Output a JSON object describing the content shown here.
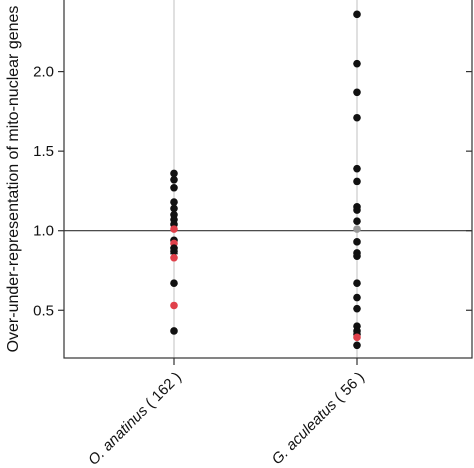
{
  "chart_data": {
    "type": "scatter",
    "ylabel": "Over-under-representation of mito-nuclear genes",
    "ylim": [
      0.2,
      2.45
    ],
    "yticks": [
      "0.5",
      "1.0",
      "1.5",
      "2.0"
    ],
    "reference_line": 1.0,
    "grid": "vertical lines at categories",
    "categories": [
      "O. anatinus ( 162 )",
      "G. aculeatus ( 56 )"
    ],
    "category_labels": [
      {
        "species": "O. anatinus",
        "count": " ( 162 )"
      },
      {
        "species": "G. aculeatus",
        "count": " ( 56 )"
      }
    ],
    "colors": {
      "default": "#111111",
      "highlight": "#e0404a",
      "neutral": "#999999",
      "axis": "#333333",
      "gridline": "#cccccc"
    },
    "series": [
      {
        "category": "O. anatinus ( 162 )",
        "points": [
          {
            "y": 1.36,
            "color": "default"
          },
          {
            "y": 1.32,
            "color": "default"
          },
          {
            "y": 1.27,
            "color": "default"
          },
          {
            "y": 1.18,
            "color": "default"
          },
          {
            "y": 1.14,
            "color": "default"
          },
          {
            "y": 1.1,
            "color": "default"
          },
          {
            "y": 1.07,
            "color": "default"
          },
          {
            "y": 1.04,
            "color": "default"
          },
          {
            "y": 1.01,
            "color": "highlight"
          },
          {
            "y": 0.94,
            "color": "default"
          },
          {
            "y": 0.92,
            "color": "highlight"
          },
          {
            "y": 0.89,
            "color": "default"
          },
          {
            "y": 0.87,
            "color": "default"
          },
          {
            "y": 0.83,
            "color": "highlight"
          },
          {
            "y": 0.67,
            "color": "default"
          },
          {
            "y": 0.53,
            "color": "highlight"
          },
          {
            "y": 0.37,
            "color": "default"
          }
        ],
        "marker": {
          "y": 0.88,
          "symbol": "×"
        }
      },
      {
        "category": "G. aculeatus ( 56 )",
        "points": [
          {
            "y": 2.36,
            "color": "default"
          },
          {
            "y": 2.05,
            "color": "default"
          },
          {
            "y": 1.87,
            "color": "default"
          },
          {
            "y": 1.71,
            "color": "default"
          },
          {
            "y": 1.39,
            "color": "default"
          },
          {
            "y": 1.31,
            "color": "default"
          },
          {
            "y": 1.15,
            "color": "default"
          },
          {
            "y": 1.13,
            "color": "default"
          },
          {
            "y": 1.06,
            "color": "default"
          },
          {
            "y": 1.01,
            "color": "neutral"
          },
          {
            "y": 0.93,
            "color": "default"
          },
          {
            "y": 0.86,
            "color": "default"
          },
          {
            "y": 0.84,
            "color": "default"
          },
          {
            "y": 0.67,
            "color": "default"
          },
          {
            "y": 0.58,
            "color": "default"
          },
          {
            "y": 0.51,
            "color": "default"
          },
          {
            "y": 0.4,
            "color": "default"
          },
          {
            "y": 0.37,
            "color": "default"
          },
          {
            "y": 0.35,
            "color": "default"
          },
          {
            "y": 0.33,
            "color": "highlight"
          },
          {
            "y": 0.28,
            "color": "default"
          }
        ]
      }
    ]
  }
}
